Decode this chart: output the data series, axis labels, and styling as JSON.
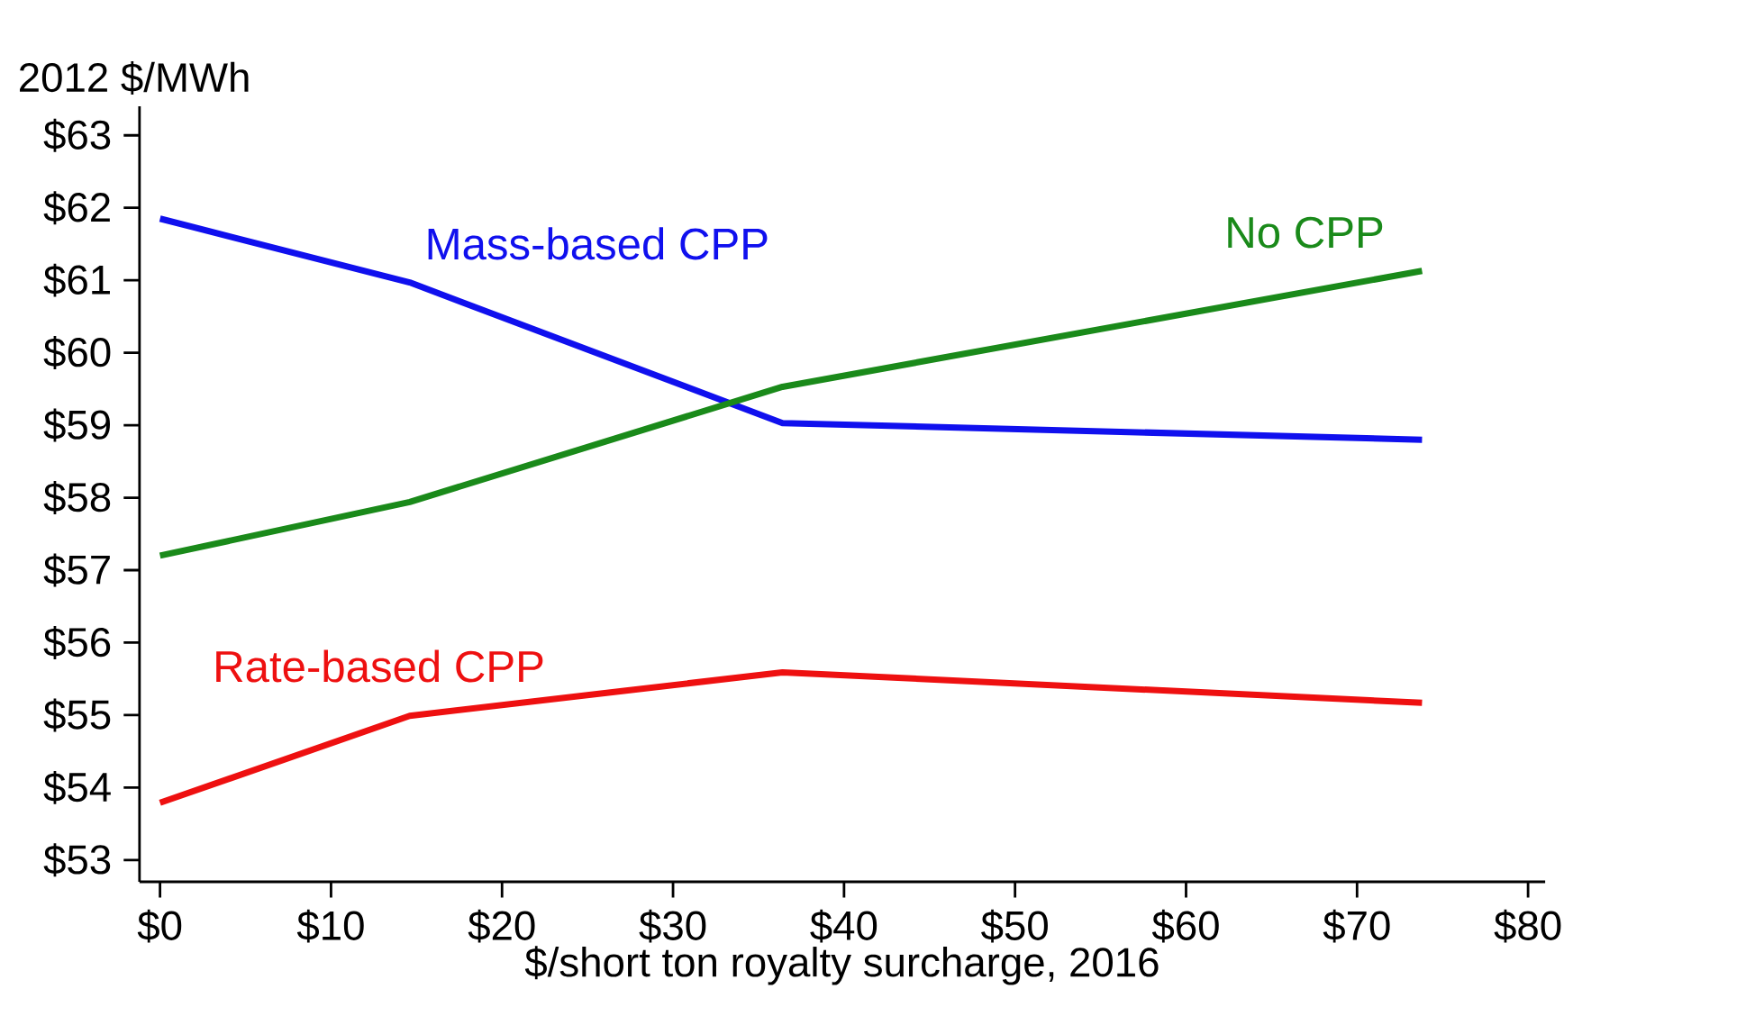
{
  "chart_data": {
    "type": "line",
    "xlabel": "$/short ton royalty surcharge, 2016",
    "ylabel": "2012 $/MWh",
    "x": [
      0,
      14.6,
      36.4,
      73.8
    ],
    "series": [
      {
        "name": "Mass-based CPP",
        "color": "#1010ee",
        "values": [
          61.85,
          60.97,
          59.03,
          58.8
        ]
      },
      {
        "name": "No CPP",
        "color": "#1a8a1a",
        "values": [
          57.2,
          57.94,
          59.53,
          61.13
        ]
      },
      {
        "name": "Rate-based CPP",
        "color": "#ee1010",
        "values": [
          53.79,
          54.99,
          55.59,
          55.17
        ]
      }
    ],
    "xlim": [
      -1.2,
      81
    ],
    "ylim": [
      52.7,
      63.4
    ],
    "xticks": [
      {
        "value": 0,
        "label": "$0"
      },
      {
        "value": 10,
        "label": "$10"
      },
      {
        "value": 20,
        "label": "$20"
      },
      {
        "value": 30,
        "label": "$30"
      },
      {
        "value": 40,
        "label": "$40"
      },
      {
        "value": 50,
        "label": "$50"
      },
      {
        "value": 60,
        "label": "$60"
      },
      {
        "value": 70,
        "label": "$70"
      },
      {
        "value": 80,
        "label": "$80"
      }
    ],
    "yticks": [
      {
        "value": 53,
        "label": "$53"
      },
      {
        "value": 54,
        "label": "$54"
      },
      {
        "value": 55,
        "label": "$55"
      },
      {
        "value": 56,
        "label": "$56"
      },
      {
        "value": 57,
        "label": "$57"
      },
      {
        "value": 58,
        "label": "$58"
      },
      {
        "value": 59,
        "label": "$59"
      },
      {
        "value": 60,
        "label": "$60"
      },
      {
        "value": 61,
        "label": "$61"
      },
      {
        "value": 62,
        "label": "$62"
      },
      {
        "value": 63,
        "label": "$63"
      }
    ],
    "grid": false,
    "legend": false,
    "marker": "none",
    "line_style": "solid"
  }
}
